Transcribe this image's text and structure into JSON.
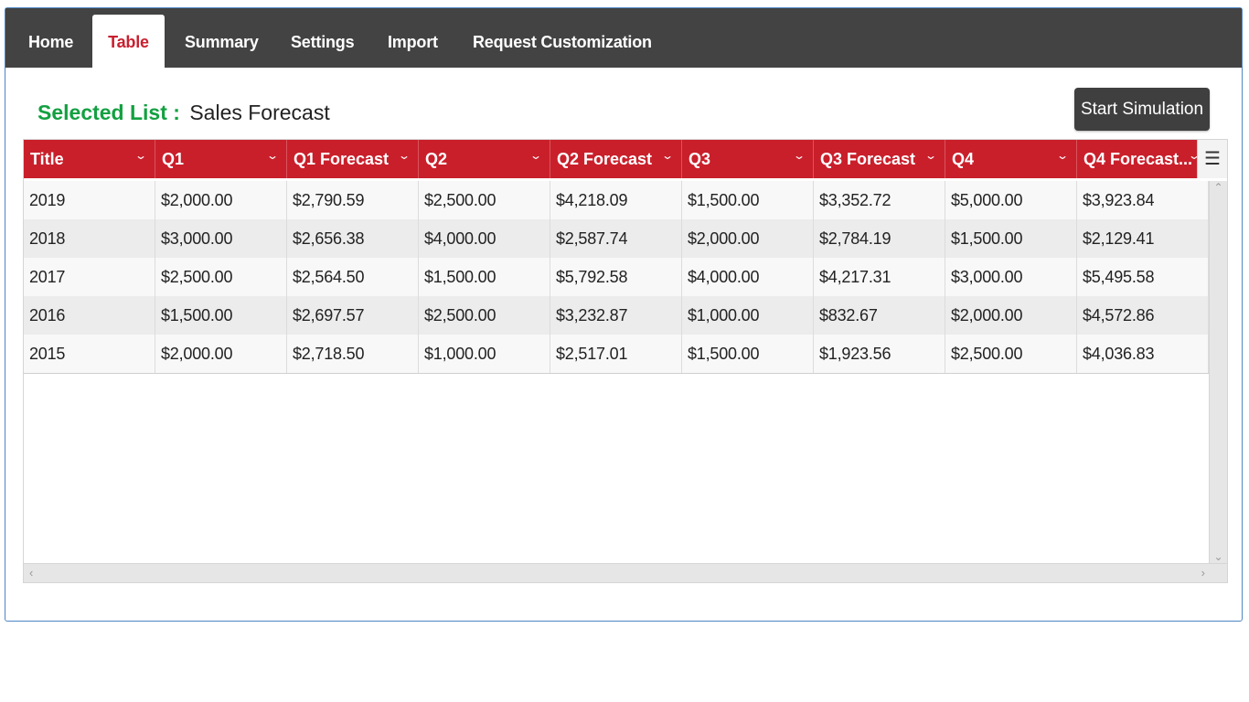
{
  "nav": {
    "tabs": [
      {
        "label": "Home"
      },
      {
        "label": "Table"
      },
      {
        "label": "Summary"
      },
      {
        "label": "Settings"
      },
      {
        "label": "Import"
      },
      {
        "label": "Request Customization"
      }
    ],
    "active_tab": "Table"
  },
  "selected_list": {
    "label": "Selected List :",
    "value": "Sales Forecast"
  },
  "actions": {
    "start_simulation": "Start Simulation"
  },
  "table": {
    "columns": [
      "Title",
      "Q1",
      "Q1 Forecast",
      "Q2",
      "Q2 Forecast",
      "Q3",
      "Q3 Forecast",
      "Q4",
      "Q4 Forecast..."
    ],
    "rows": [
      [
        "2019",
        "$2,000.00",
        "$2,790.59",
        "$2,500.00",
        "$4,218.09",
        "$1,500.00",
        "$3,352.72",
        "$5,000.00",
        "$3,923.84"
      ],
      [
        "2018",
        "$3,000.00",
        "$2,656.38",
        "$4,000.00",
        "$2,587.74",
        "$2,000.00",
        "$2,784.19",
        "$1,500.00",
        "$2,129.41"
      ],
      [
        "2017",
        "$2,500.00",
        "$2,564.50",
        "$1,500.00",
        "$5,792.58",
        "$4,000.00",
        "$4,217.31",
        "$3,000.00",
        "$5,495.58"
      ],
      [
        "2016",
        "$1,500.00",
        "$2,697.57",
        "$2,500.00",
        "$3,232.87",
        "$1,000.00",
        "$832.67",
        "$2,000.00",
        "$4,572.86"
      ],
      [
        "2015",
        "$2,000.00",
        "$2,718.50",
        "$1,000.00",
        "$2,517.01",
        "$1,500.00",
        "$1,923.56",
        "$2,500.00",
        "$4,036.83"
      ]
    ]
  },
  "icons": {
    "column_menu": "chevron-down-icon",
    "grid_menu": "hamburger-menu-icon"
  },
  "colors": {
    "nav_bg": "#434343",
    "active_tab_text": "#c8202f",
    "header_bg": "#c91f2b",
    "selected_label": "#13a041",
    "button_bg": "#3f3f3f"
  }
}
